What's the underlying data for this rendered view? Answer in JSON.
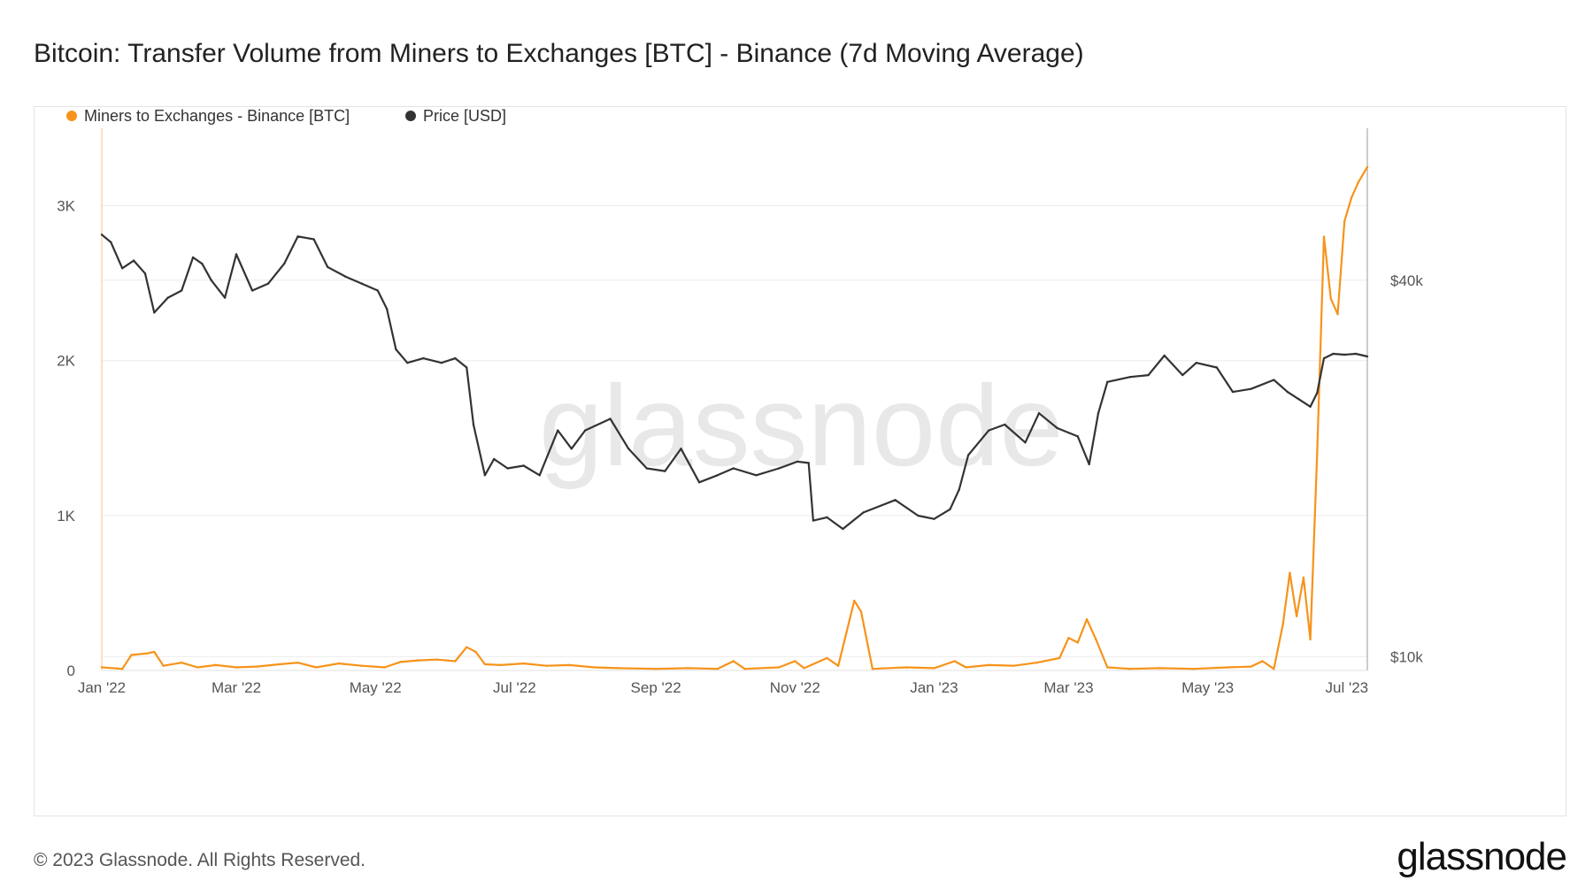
{
  "title": "Bitcoin: Transfer Volume from Miners to Exchanges [BTC] - Binance (7d Moving Average)",
  "footer": {
    "copyright": "© 2023 Glassnode. All Rights Reserved.",
    "logo": "glassnode"
  },
  "watermark": "glassnode",
  "colors": {
    "miners_series": "#f7931a",
    "price_series": "#333333",
    "grid": "#ececec",
    "tick_text": "#555555"
  },
  "chart_data": {
    "type": "line",
    "title": "Bitcoin: Transfer Volume from Miners to Exchanges [BTC] - Binance (7d Moving Average)",
    "x_axis": {
      "type": "date",
      "range": [
        "2022-01-01",
        "2023-07-10"
      ],
      "tick_labels": [
        "Jan '22",
        "Mar '22",
        "May '22",
        "Jul '22",
        "Sep '22",
        "Nov '22",
        "Jan '23",
        "Mar '23",
        "May '23",
        "Jul '23"
      ],
      "tick_dates": [
        "2022-01-01",
        "2022-03-01",
        "2022-05-01",
        "2022-07-01",
        "2022-09-01",
        "2022-11-01",
        "2023-01-01",
        "2023-03-01",
        "2023-05-01",
        "2023-07-01"
      ]
    },
    "y_left": {
      "scale": "linear",
      "range": [
        0,
        3500
      ],
      "ticks": [
        0,
        1000,
        2000,
        3000
      ],
      "tick_labels": [
        "0",
        "1K",
        "2K",
        "3K"
      ]
    },
    "y_right": {
      "scale": "log",
      "range": [
        9500,
        70000
      ],
      "ticks": [
        10000,
        40000
      ],
      "tick_labels": [
        "$10k",
        "$40k"
      ]
    },
    "legend": {
      "placement": "top-left"
    },
    "grid": true,
    "series": [
      {
        "name": "Miners to Exchanges - Binance [BTC]",
        "axis": "left",
        "color": "#f7931a",
        "points": [
          [
            "2022-01-01",
            20
          ],
          [
            "2022-01-10",
            10
          ],
          [
            "2022-01-14",
            100
          ],
          [
            "2022-01-21",
            110
          ],
          [
            "2022-01-24",
            120
          ],
          [
            "2022-01-28",
            30
          ],
          [
            "2022-02-05",
            50
          ],
          [
            "2022-02-12",
            20
          ],
          [
            "2022-02-20",
            35
          ],
          [
            "2022-03-01",
            20
          ],
          [
            "2022-03-10",
            25
          ],
          [
            "2022-03-20",
            40
          ],
          [
            "2022-03-28",
            50
          ],
          [
            "2022-04-05",
            20
          ],
          [
            "2022-04-15",
            45
          ],
          [
            "2022-04-25",
            30
          ],
          [
            "2022-05-05",
            20
          ],
          [
            "2022-05-12",
            55
          ],
          [
            "2022-05-20",
            65
          ],
          [
            "2022-05-28",
            70
          ],
          [
            "2022-06-05",
            60
          ],
          [
            "2022-06-10",
            150
          ],
          [
            "2022-06-14",
            120
          ],
          [
            "2022-06-18",
            40
          ],
          [
            "2022-06-25",
            35
          ],
          [
            "2022-07-05",
            45
          ],
          [
            "2022-07-15",
            30
          ],
          [
            "2022-07-25",
            35
          ],
          [
            "2022-08-05",
            20
          ],
          [
            "2022-08-15",
            15
          ],
          [
            "2022-09-01",
            10
          ],
          [
            "2022-09-15",
            15
          ],
          [
            "2022-09-28",
            10
          ],
          [
            "2022-10-05",
            60
          ],
          [
            "2022-10-10",
            10
          ],
          [
            "2022-10-25",
            20
          ],
          [
            "2022-11-01",
            60
          ],
          [
            "2022-11-05",
            15
          ],
          [
            "2022-11-15",
            80
          ],
          [
            "2022-11-20",
            30
          ],
          [
            "2022-11-27",
            450
          ],
          [
            "2022-11-30",
            380
          ],
          [
            "2022-12-05",
            10
          ],
          [
            "2022-12-20",
            20
          ],
          [
            "2023-01-01",
            15
          ],
          [
            "2023-01-10",
            60
          ],
          [
            "2023-01-15",
            20
          ],
          [
            "2023-01-25",
            35
          ],
          [
            "2023-02-05",
            30
          ],
          [
            "2023-02-15",
            50
          ],
          [
            "2023-02-25",
            80
          ],
          [
            "2023-03-01",
            210
          ],
          [
            "2023-03-05",
            180
          ],
          [
            "2023-03-09",
            330
          ],
          [
            "2023-03-13",
            200
          ],
          [
            "2023-03-18",
            20
          ],
          [
            "2023-03-28",
            10
          ],
          [
            "2023-04-10",
            15
          ],
          [
            "2023-04-25",
            10
          ],
          [
            "2023-05-10",
            20
          ],
          [
            "2023-05-20",
            25
          ],
          [
            "2023-05-25",
            60
          ],
          [
            "2023-05-30",
            10
          ],
          [
            "2023-06-03",
            300
          ],
          [
            "2023-06-06",
            630
          ],
          [
            "2023-06-09",
            350
          ],
          [
            "2023-06-12",
            600
          ],
          [
            "2023-06-15",
            200
          ],
          [
            "2023-06-18",
            1400
          ],
          [
            "2023-06-21",
            2800
          ],
          [
            "2023-06-24",
            2400
          ],
          [
            "2023-06-27",
            2300
          ],
          [
            "2023-06-30",
            2900
          ],
          [
            "2023-07-03",
            3050
          ],
          [
            "2023-07-06",
            3150
          ],
          [
            "2023-07-10",
            3250
          ]
        ]
      },
      {
        "name": "Price [USD]",
        "axis": "right",
        "color": "#333333",
        "points": [
          [
            "2022-01-01",
            47300
          ],
          [
            "2022-01-05",
            46000
          ],
          [
            "2022-01-10",
            41800
          ],
          [
            "2022-01-15",
            43000
          ],
          [
            "2022-01-20",
            41000
          ],
          [
            "2022-01-24",
            35500
          ],
          [
            "2022-01-30",
            37500
          ],
          [
            "2022-02-05",
            38500
          ],
          [
            "2022-02-10",
            43500
          ],
          [
            "2022-02-14",
            42500
          ],
          [
            "2022-02-18",
            40000
          ],
          [
            "2022-02-24",
            37500
          ],
          [
            "2022-03-01",
            44000
          ],
          [
            "2022-03-08",
            38500
          ],
          [
            "2022-03-15",
            39500
          ],
          [
            "2022-03-22",
            42500
          ],
          [
            "2022-03-28",
            47000
          ],
          [
            "2022-04-04",
            46500
          ],
          [
            "2022-04-10",
            42000
          ],
          [
            "2022-04-18",
            40500
          ],
          [
            "2022-04-25",
            39500
          ],
          [
            "2022-05-02",
            38500
          ],
          [
            "2022-05-06",
            36000
          ],
          [
            "2022-05-10",
            31000
          ],
          [
            "2022-05-15",
            29500
          ],
          [
            "2022-05-22",
            30000
          ],
          [
            "2022-05-30",
            29500
          ],
          [
            "2022-06-05",
            30000
          ],
          [
            "2022-06-10",
            29000
          ],
          [
            "2022-06-13",
            23500
          ],
          [
            "2022-06-18",
            19500
          ],
          [
            "2022-06-22",
            20700
          ],
          [
            "2022-06-28",
            20000
          ],
          [
            "2022-07-05",
            20200
          ],
          [
            "2022-07-12",
            19500
          ],
          [
            "2022-07-20",
            23000
          ],
          [
            "2022-07-26",
            21500
          ],
          [
            "2022-08-01",
            23000
          ],
          [
            "2022-08-12",
            24000
          ],
          [
            "2022-08-20",
            21500
          ],
          [
            "2022-08-28",
            20000
          ],
          [
            "2022-09-05",
            19800
          ],
          [
            "2022-09-12",
            21500
          ],
          [
            "2022-09-20",
            19000
          ],
          [
            "2022-09-28",
            19500
          ],
          [
            "2022-10-05",
            20000
          ],
          [
            "2022-10-15",
            19500
          ],
          [
            "2022-10-25",
            20000
          ],
          [
            "2022-11-02",
            20500
          ],
          [
            "2022-11-07",
            20400
          ],
          [
            "2022-11-09",
            16500
          ],
          [
            "2022-11-15",
            16700
          ],
          [
            "2022-11-22",
            16000
          ],
          [
            "2022-12-01",
            17000
          ],
          [
            "2022-12-15",
            17800
          ],
          [
            "2022-12-25",
            16800
          ],
          [
            "2023-01-01",
            16600
          ],
          [
            "2023-01-08",
            17200
          ],
          [
            "2023-01-12",
            18500
          ],
          [
            "2023-01-16",
            21000
          ],
          [
            "2023-01-25",
            23000
          ],
          [
            "2023-02-01",
            23500
          ],
          [
            "2023-02-10",
            22000
          ],
          [
            "2023-02-16",
            24500
          ],
          [
            "2023-02-24",
            23200
          ],
          [
            "2023-03-05",
            22500
          ],
          [
            "2023-03-10",
            20300
          ],
          [
            "2023-03-14",
            24500
          ],
          [
            "2023-03-18",
            27500
          ],
          [
            "2023-03-28",
            28000
          ],
          [
            "2023-04-05",
            28200
          ],
          [
            "2023-04-12",
            30300
          ],
          [
            "2023-04-20",
            28200
          ],
          [
            "2023-04-26",
            29500
          ],
          [
            "2023-05-05",
            29000
          ],
          [
            "2023-05-12",
            26500
          ],
          [
            "2023-05-20",
            26800
          ],
          [
            "2023-05-30",
            27700
          ],
          [
            "2023-06-05",
            26500
          ],
          [
            "2023-06-10",
            25800
          ],
          [
            "2023-06-15",
            25100
          ],
          [
            "2023-06-18",
            26400
          ],
          [
            "2023-06-21",
            30000
          ],
          [
            "2023-06-25",
            30500
          ],
          [
            "2023-06-30",
            30400
          ],
          [
            "2023-07-05",
            30500
          ],
          [
            "2023-07-10",
            30200
          ]
        ]
      }
    ]
  }
}
